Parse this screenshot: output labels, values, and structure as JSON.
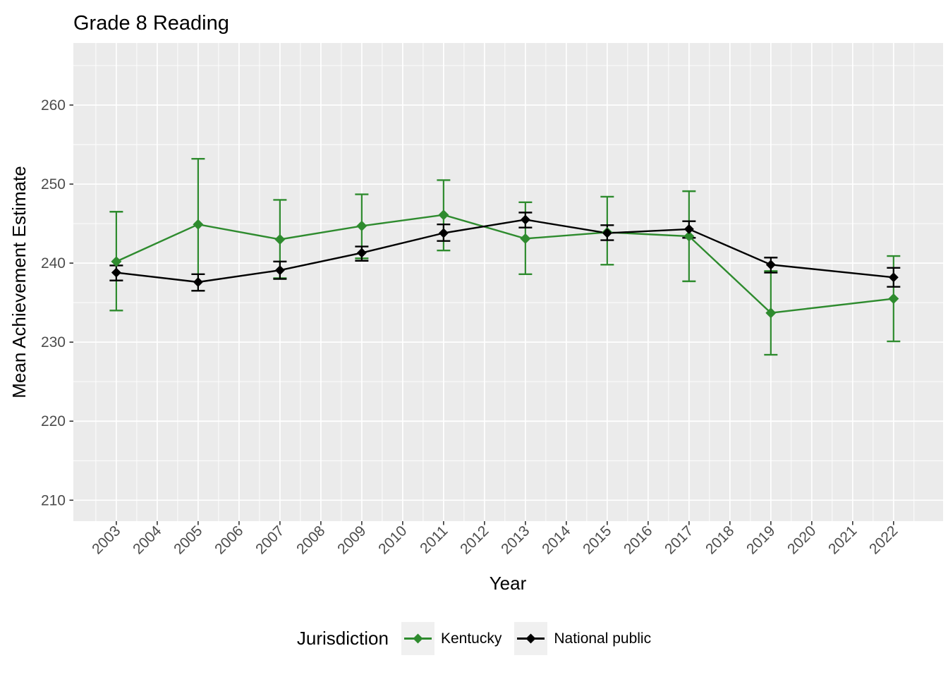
{
  "page": {
    "background": "#FFFFFF"
  },
  "chart_data": {
    "type": "line",
    "title": "Grade 8 Reading",
    "xlabel": "Year",
    "ylabel": "Mean Achievement Estimate",
    "legend_title": "Jurisdiction",
    "legend_position": "bottom",
    "grid": true,
    "error_bars": true,
    "panel_color": "#EBEBEB",
    "grid_color": "#FFFFFF",
    "axis_text_color": "#4D4D4D",
    "tick_mark_color": "#333333",
    "x_tick_labels": [
      "2003",
      "2004",
      "2005",
      "2006",
      "2007",
      "2008",
      "2009",
      "2010",
      "2011",
      "2012",
      "2013",
      "2014",
      "2015",
      "2016",
      "2017",
      "2018",
      "2019",
      "2020",
      "2021",
      "2022"
    ],
    "y_ticks": [
      210,
      220,
      230,
      240,
      250,
      260
    ],
    "y_minor_ticks": [
      215,
      225,
      235,
      245,
      255,
      265
    ],
    "x_domain": [
      2001.95,
      2023.21
    ],
    "y_domain": [
      207.35,
      267.85
    ],
    "x": [
      2003,
      2005,
      2007,
      2009,
      2011,
      2013,
      2015,
      2017,
      2019,
      2022
    ],
    "series": [
      {
        "name": "Kentucky",
        "color": "#2E8B2E",
        "point_shape": "diamond",
        "values": [
          240.2,
          244.9,
          243.0,
          244.7,
          246.1,
          243.1,
          243.9,
          243.4,
          233.7,
          235.5
        ],
        "err_lo": [
          234.0,
          236.5,
          238.1,
          240.6,
          241.6,
          238.6,
          239.8,
          237.7,
          228.4,
          230.1
        ],
        "err_hi": [
          246.5,
          253.2,
          248.0,
          248.7,
          250.5,
          247.7,
          248.4,
          249.1,
          239.0,
          240.9
        ]
      },
      {
        "name": "National public",
        "color": "#000000",
        "point_shape": "diamond",
        "values": [
          238.8,
          237.6,
          239.1,
          241.3,
          243.8,
          245.5,
          243.8,
          244.3,
          239.8,
          238.2
        ],
        "err_lo": [
          237.8,
          236.5,
          238.0,
          240.3,
          242.8,
          244.5,
          242.9,
          243.2,
          238.8,
          237.0
        ],
        "err_hi": [
          239.7,
          238.6,
          240.2,
          242.1,
          244.9,
          246.4,
          244.8,
          245.3,
          240.7,
          239.4
        ]
      }
    ]
  }
}
